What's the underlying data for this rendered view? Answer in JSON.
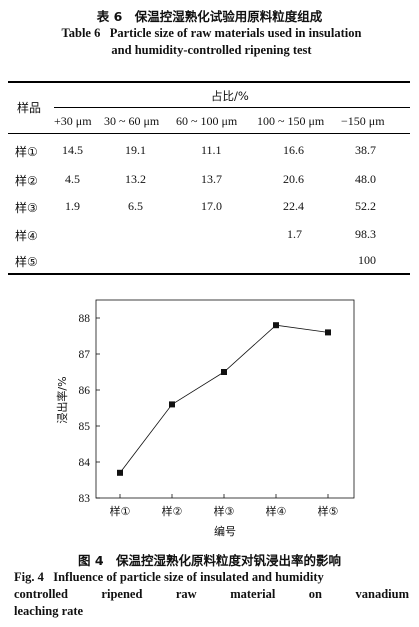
{
  "table": {
    "caption_cn": "表 6　保温控湿熟化试验用原料粒度组成",
    "caption_en_label": "Table 6",
    "caption_en_line1": "Particle size of raw materials used in insulation",
    "caption_en_line2": "and humidity-controlled ripening test",
    "row_header": "样品",
    "group_header": "占比/%",
    "columns": [
      "+30 μm",
      "30 ~ 60 μm",
      "60 ~ 100 μm",
      "100 ~ 150 μm",
      "−150 μm"
    ],
    "rows": [
      {
        "sample": "样①",
        "values": [
          "14.5",
          "19.1",
          "11.1",
          "16.6",
          "38.7"
        ]
      },
      {
        "sample": "样②",
        "values": [
          "4.5",
          "13.2",
          "13.7",
          "20.6",
          "48.0"
        ]
      },
      {
        "sample": "样③",
        "values": [
          "1.9",
          "6.5",
          "17.0",
          "22.4",
          "52.2"
        ]
      },
      {
        "sample": "样④",
        "values": [
          "",
          "",
          "",
          "1.7",
          "98.3"
        ]
      },
      {
        "sample": "样⑤",
        "values": [
          "",
          "",
          "",
          "",
          "100"
        ]
      }
    ]
  },
  "figure": {
    "caption_cn": "图 4　保温控湿熟化原料粒度对钒浸出率的影响",
    "caption_en_label": "Fig. 4",
    "caption_en_line1": "Influence of particle size of insulated and humidity",
    "caption_en_line2": "controlled ripened raw material on vanadium",
    "caption_en_line3": "leaching rate"
  },
  "chart_data": {
    "type": "line",
    "categories": [
      "样①",
      "样②",
      "样③",
      "样④",
      "样⑤"
    ],
    "series": [
      {
        "values": [
          83.7,
          85.6,
          86.5,
          87.8,
          87.6
        ]
      }
    ],
    "xlabel": "编号",
    "ylabel": "浸出率/%",
    "ylim": [
      83,
      88.5
    ],
    "yticks": [
      83,
      84,
      85,
      86,
      87,
      88
    ],
    "grid": false,
    "marker": "square",
    "color": "#111111"
  }
}
